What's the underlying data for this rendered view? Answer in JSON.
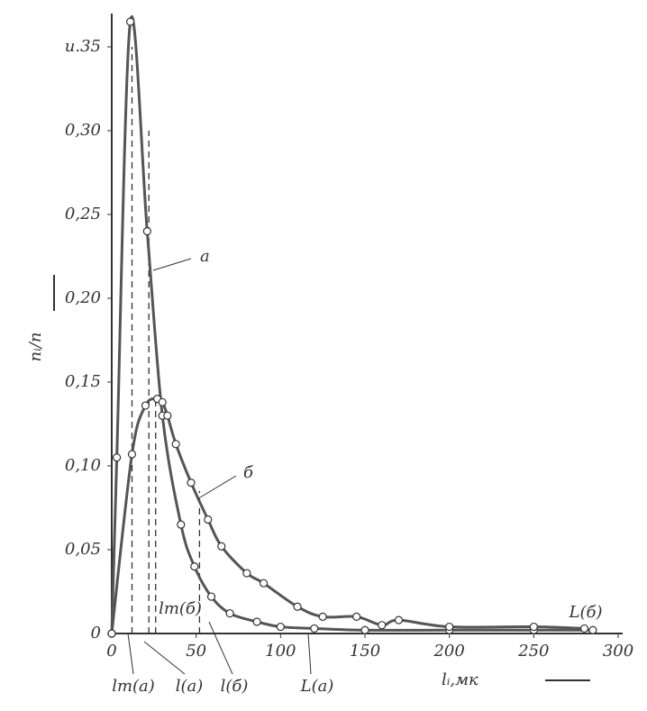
{
  "chart_data": {
    "type": "line",
    "xlabel": "lᵢ,мк",
    "ylabel": "nᵢ/n",
    "xlim": [
      0,
      300
    ],
    "ylim": [
      0,
      0.35
    ],
    "xticks": [
      0,
      50,
      100,
      150,
      200,
      250,
      300
    ],
    "yticks": [
      0,
      {
        "value": 0.05,
        "label": "0,05"
      },
      {
        "value": 0.1,
        "label": "0,10"
      },
      {
        "value": 0.15,
        "label": "0,15"
      },
      {
        "value": 0.2,
        "label": "0,20"
      },
      {
        "value": 0.25,
        "label": "0,25"
      },
      {
        "value": 0.3,
        "label": "0,30"
      },
      {
        "value": 0.35,
        "label": "u.35"
      }
    ],
    "series": [
      {
        "name": "a",
        "color": "#555555",
        "x": [
          0,
          3,
          11,
          21,
          30,
          41,
          49,
          59,
          70,
          86,
          100,
          120,
          150,
          200,
          250,
          285
        ],
        "values": [
          0,
          0.105,
          0.365,
          0.24,
          0.13,
          0.065,
          0.04,
          0.022,
          0.012,
          0.007,
          0.004,
          0.003,
          0.002,
          0.002,
          0.002,
          0.002
        ]
      },
      {
        "name": "б",
        "color": "#555555",
        "x": [
          0,
          12,
          20,
          27,
          30,
          33,
          38,
          47,
          57,
          65,
          80,
          90,
          110,
          125,
          145,
          160,
          170,
          200,
          250,
          280
        ],
        "values": [
          0,
          0.107,
          0.136,
          0.14,
          0.138,
          0.13,
          0.113,
          0.09,
          0.068,
          0.052,
          0.036,
          0.03,
          0.016,
          0.01,
          0.01,
          0.005,
          0.008,
          0.004,
          0.004,
          0.003
        ]
      }
    ],
    "verticals": [
      {
        "x": 12,
        "y": 0.35
      },
      {
        "x": 22,
        "y": 0.3
      },
      {
        "x": 26,
        "y": 0.14
      },
      {
        "x": 52,
        "y": 0.085
      }
    ],
    "annotations": [
      "lm(a)",
      "l(a)",
      "l(б)",
      "L(a)",
      "lm(б)",
      "L(б)"
    ]
  }
}
